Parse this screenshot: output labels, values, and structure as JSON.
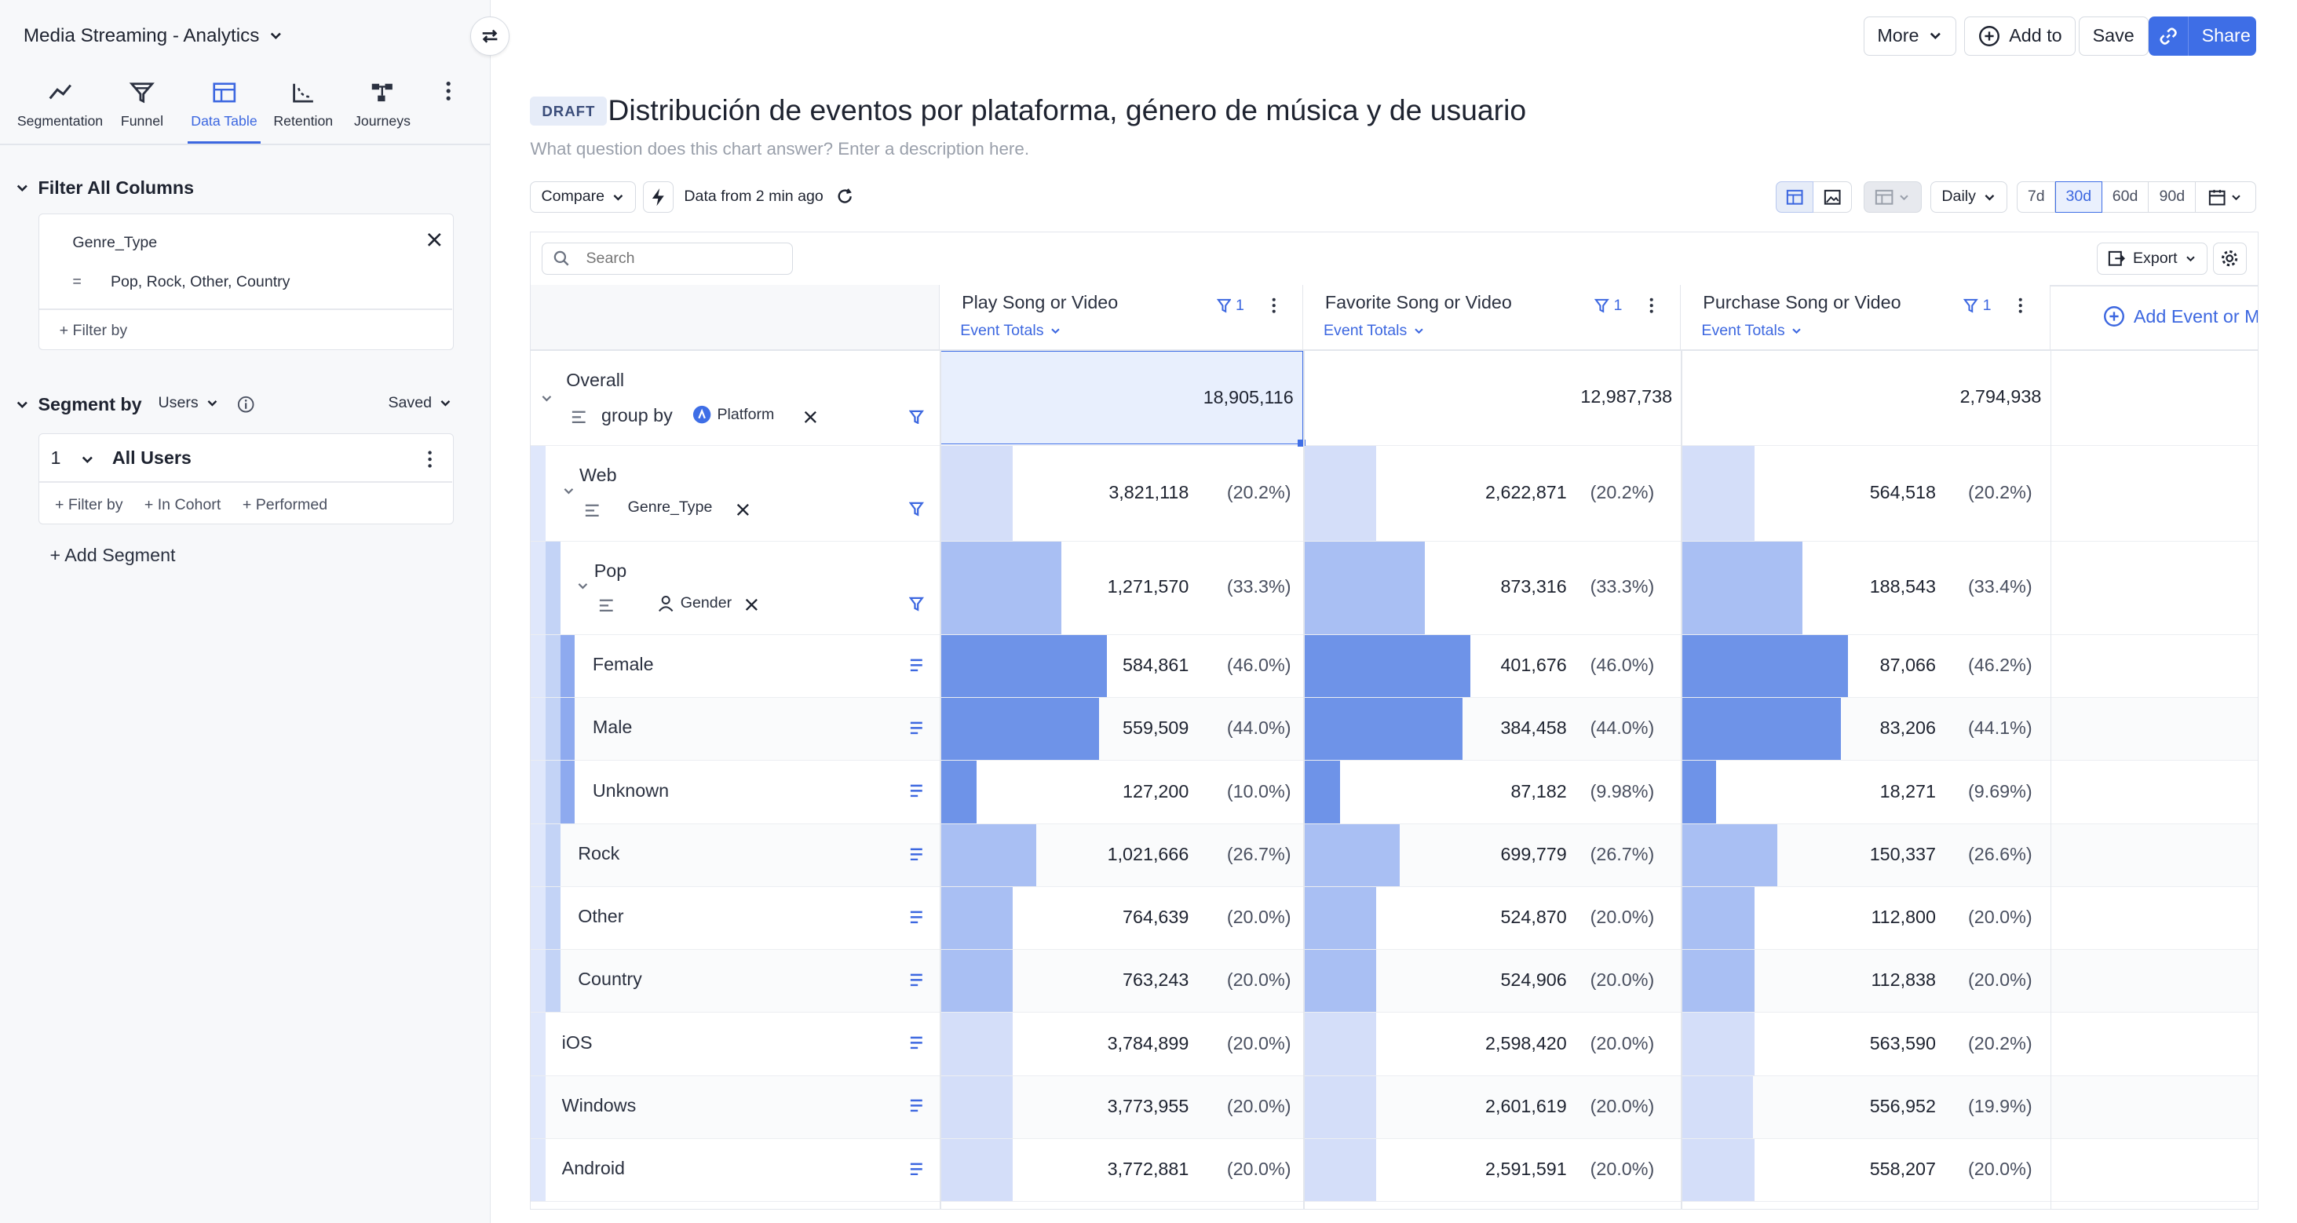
{
  "app": {
    "title": "Media Streaming - Analytics"
  },
  "tabs": [
    {
      "label": "Segmentation",
      "icon": "line-chart-icon"
    },
    {
      "label": "Funnel",
      "icon": "funnel-icon"
    },
    {
      "label": "Data Table",
      "icon": "table-icon",
      "active": true
    },
    {
      "label": "Retention",
      "icon": "retention-icon"
    },
    {
      "label": "Journeys",
      "icon": "journeys-icon"
    }
  ],
  "filter_all": {
    "heading": "Filter All Columns",
    "property": "Genre_Type",
    "operator": "=",
    "values": "Pop, Rock, Other, Country",
    "add_filter": "+ Filter by"
  },
  "segment": {
    "heading": "Segment by",
    "users_label": "Users",
    "saved_label": "Saved",
    "number": "1",
    "name": "All Users",
    "filter_by": "+ Filter by",
    "in_cohort": "+ In Cohort",
    "performed": "+ Performed",
    "add_segment": "+ Add Segment"
  },
  "header": {
    "more": "More",
    "add_to": "Add to",
    "save": "Save",
    "share": "Share",
    "draft": "DRAFT",
    "title": "Distribución de eventos por plataforma, género de música y de usuario",
    "description": "What question does this chart answer? Enter a description here."
  },
  "controls": {
    "compare": "Compare",
    "data_freshness": "Data from 2 min ago",
    "interval": "Daily",
    "ranges": [
      "7d",
      "30d",
      "60d",
      "90d"
    ],
    "active_range": "30d"
  },
  "table": {
    "search_placeholder": "Search",
    "export": "Export",
    "add_event": "Add Event or Metric",
    "columns": [
      {
        "event": "Play Song or Video",
        "filter_count": "1",
        "metric": "Event Totals"
      },
      {
        "event": "Favorite Song or Video",
        "filter_count": "1",
        "metric": "Event Totals"
      },
      {
        "event": "Purchase Song or Video",
        "filter_count": "1",
        "metric": "Event Totals"
      }
    ],
    "overall": {
      "label": "Overall",
      "group_by": "group by",
      "group_prop": "Platform",
      "values": [
        "18,905,116",
        "12,987,738",
        "2,794,938"
      ]
    },
    "web_group_prop": "Genre_Type",
    "pop_group_prop": "Gender",
    "rows": [
      {
        "label": "Web",
        "values": [
          "3,821,118",
          "2,622,871",
          "564,518"
        ],
        "pcts": [
          "(20.2%)",
          "(20.2%)",
          "(20.2%)"
        ],
        "share": [
          0.202,
          0.202,
          0.202
        ]
      },
      {
        "label": "Pop",
        "values": [
          "1,271,570",
          "873,316",
          "188,543"
        ],
        "pcts": [
          "(33.3%)",
          "(33.3%)",
          "(33.4%)"
        ],
        "share": [
          0.333,
          0.333,
          0.334
        ]
      },
      {
        "label": "Female",
        "values": [
          "584,861",
          "401,676",
          "87,066"
        ],
        "pcts": [
          "(46.0%)",
          "(46.0%)",
          "(46.2%)"
        ],
        "share": [
          0.46,
          0.46,
          0.462
        ]
      },
      {
        "label": "Male",
        "values": [
          "559,509",
          "384,458",
          "83,206"
        ],
        "pcts": [
          "(44.0%)",
          "(44.0%)",
          "(44.1%)"
        ],
        "share": [
          0.44,
          0.44,
          0.441
        ]
      },
      {
        "label": "Unknown",
        "values": [
          "127,200",
          "87,182",
          "18,271"
        ],
        "pcts": [
          "(10.0%)",
          "(9.98%)",
          "(9.69%)"
        ],
        "share": [
          0.1,
          0.0998,
          0.0969
        ]
      },
      {
        "label": "Rock",
        "values": [
          "1,021,666",
          "699,779",
          "150,337"
        ],
        "pcts": [
          "(26.7%)",
          "(26.7%)",
          "(26.6%)"
        ],
        "share": [
          0.267,
          0.267,
          0.266
        ]
      },
      {
        "label": "Other",
        "values": [
          "764,639",
          "524,870",
          "112,800"
        ],
        "pcts": [
          "(20.0%)",
          "(20.0%)",
          "(20.0%)"
        ],
        "share": [
          0.2,
          0.2,
          0.2
        ]
      },
      {
        "label": "Country",
        "values": [
          "763,243",
          "524,906",
          "112,838"
        ],
        "pcts": [
          "(20.0%)",
          "(20.0%)",
          "(20.0%)"
        ],
        "share": [
          0.2,
          0.2,
          0.2
        ]
      },
      {
        "label": "iOS",
        "values": [
          "3,784,899",
          "2,598,420",
          "563,590"
        ],
        "pcts": [
          "(20.0%)",
          "(20.0%)",
          "(20.2%)"
        ],
        "share": [
          0.2,
          0.2,
          0.202
        ]
      },
      {
        "label": "Windows",
        "values": [
          "3,773,955",
          "2,601,619",
          "556,952"
        ],
        "pcts": [
          "(20.0%)",
          "(20.0%)",
          "(19.9%)"
        ],
        "share": [
          0.2,
          0.2,
          0.199
        ]
      },
      {
        "label": "Android",
        "values": [
          "3,772,881",
          "2,591,591",
          "558,207"
        ],
        "pcts": [
          "(20.0%)",
          "(20.0%)",
          "(20.0%)"
        ],
        "share": [
          0.2,
          0.2,
          0.2
        ]
      }
    ]
  },
  "colors": {
    "accent": "#3e6ee6",
    "bar_light": "#d4def9",
    "bar_mid": "#a9bff3",
    "bar_dark": "#6e93e8"
  }
}
